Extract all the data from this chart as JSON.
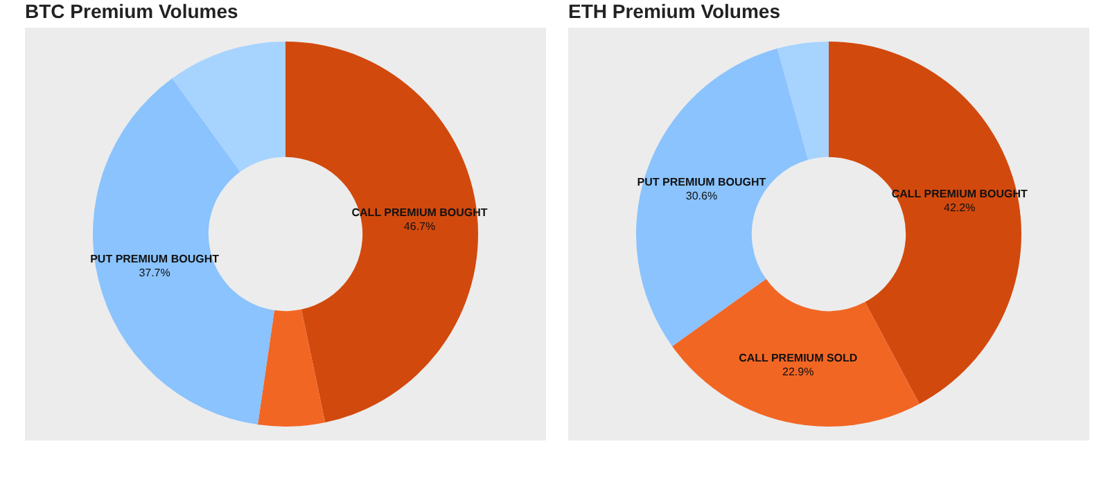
{
  "chart_data": [
    {
      "type": "donut",
      "title": "BTC Premium Volumes",
      "categories": [
        "CALL PREMIUM BOUGHT",
        null,
        "PUT PREMIUM BOUGHT",
        null
      ],
      "values": [
        46.7,
        5.6,
        37.7,
        10.0
      ],
      "value_labels": [
        "46.7%",
        null,
        "37.7%",
        null
      ],
      "colors": [
        "#d2490d",
        "#f26624",
        "#8ac3fe",
        "#a7d3ff"
      ],
      "legend": false
    },
    {
      "type": "donut",
      "title": "ETH Premium Volumes",
      "categories": [
        "CALL PREMIUM BOUGHT",
        "CALL PREMIUM SOLD",
        "PUT PREMIUM BOUGHT",
        null
      ],
      "values": [
        42.2,
        22.9,
        30.6,
        4.3
      ],
      "value_labels": [
        "42.2%",
        "22.9%",
        "30.6%",
        null
      ],
      "colors": [
        "#d2490d",
        "#f26624",
        "#8ac3fe",
        "#a7d3ff"
      ],
      "legend": false
    }
  ]
}
